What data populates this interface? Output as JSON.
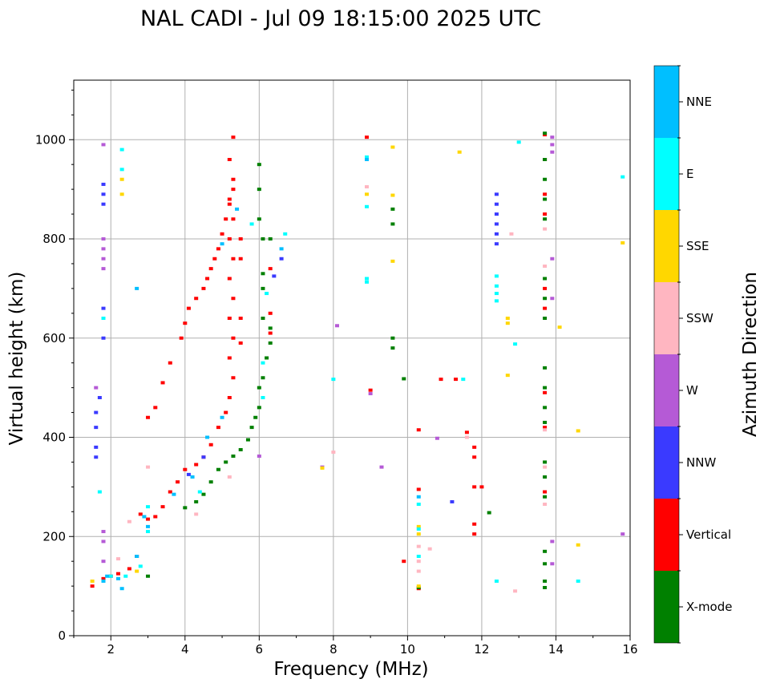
{
  "chart_data": {
    "type": "scatter",
    "title": "NAL CADI - Jul 09 18:15:00 2025 UTC",
    "xlabel": "Frequency (MHz)",
    "ylabel": "Virtual height (km)",
    "xlim": [
      1,
      16
    ],
    "ylim": [
      0,
      1120
    ],
    "x_ticks": [
      2,
      4,
      6,
      8,
      10,
      12,
      14,
      16
    ],
    "y_ticks": [
      0,
      200,
      400,
      600,
      800,
      1000
    ],
    "grid": true,
    "colorbar": {
      "label": "Azimuth Direction",
      "categories": [
        "X-mode",
        "Vertical",
        "NNW",
        "W",
        "SSW",
        "SSE",
        "E",
        "NNE"
      ],
      "colors": [
        "#008000",
        "#ff0000",
        "#3a3aff",
        "#b55ad6",
        "#ffb6c1",
        "#ffd700",
        "#00ffff",
        "#00bfff"
      ]
    },
    "series": [
      {
        "name": "Vertical",
        "color": "#ff0000",
        "points": [
          [
            1.5,
            100
          ],
          [
            1.8,
            115
          ],
          [
            2.0,
            120
          ],
          [
            2.2,
            125
          ],
          [
            2.5,
            135
          ],
          [
            2.7,
            160
          ],
          [
            2.8,
            245
          ],
          [
            3.0,
            235
          ],
          [
            3.2,
            240
          ],
          [
            3.4,
            260
          ],
          [
            3.6,
            290
          ],
          [
            3.8,
            310
          ],
          [
            4.0,
            335
          ],
          [
            4.3,
            345
          ],
          [
            4.5,
            360
          ],
          [
            4.7,
            385
          ],
          [
            4.9,
            420
          ],
          [
            5.1,
            450
          ],
          [
            5.2,
            480
          ],
          [
            5.3,
            520
          ],
          [
            5.2,
            560
          ],
          [
            5.3,
            600
          ],
          [
            5.2,
            640
          ],
          [
            5.3,
            680
          ],
          [
            5.2,
            720
          ],
          [
            5.3,
            760
          ],
          [
            5.2,
            800
          ],
          [
            5.3,
            840
          ],
          [
            5.2,
            880
          ],
          [
            5.3,
            920
          ],
          [
            5.2,
            960
          ],
          [
            5.3,
            1005
          ],
          [
            3.0,
            440
          ],
          [
            3.2,
            460
          ],
          [
            3.4,
            510
          ],
          [
            3.6,
            550
          ],
          [
            3.9,
            600
          ],
          [
            4.0,
            630
          ],
          [
            4.1,
            660
          ],
          [
            4.3,
            680
          ],
          [
            4.5,
            700
          ],
          [
            4.6,
            720
          ],
          [
            4.7,
            740
          ],
          [
            4.8,
            760
          ],
          [
            4.9,
            780
          ],
          [
            5.0,
            810
          ],
          [
            5.1,
            840
          ],
          [
            5.2,
            870
          ],
          [
            5.3,
            900
          ],
          [
            5.5,
            590
          ],
          [
            5.5,
            640
          ],
          [
            5.5,
            760
          ],
          [
            5.5,
            800
          ],
          [
            6.3,
            610
          ],
          [
            6.3,
            650
          ],
          [
            6.3,
            740
          ],
          [
            8.9,
            1005
          ],
          [
            9.0,
            495
          ],
          [
            10.3,
            415
          ],
          [
            10.9,
            517
          ],
          [
            11.3,
            517
          ],
          [
            11.6,
            410
          ],
          [
            11.8,
            380
          ],
          [
            11.8,
            360
          ],
          [
            11.8,
            300
          ],
          [
            11.8,
            225
          ],
          [
            11.8,
            205
          ],
          [
            12.0,
            300
          ],
          [
            10.3,
            95
          ],
          [
            10.3,
            295
          ],
          [
            9.9,
            150
          ],
          [
            13.7,
            1010
          ],
          [
            13.7,
            960
          ],
          [
            13.7,
            890
          ],
          [
            13.7,
            850
          ],
          [
            13.7,
            700
          ],
          [
            13.7,
            660
          ],
          [
            13.7,
            490
          ],
          [
            13.7,
            420
          ],
          [
            13.7,
            290
          ]
        ]
      },
      {
        "name": "X-mode",
        "color": "#008000",
        "points": [
          [
            3.0,
            120
          ],
          [
            4.0,
            258
          ],
          [
            4.3,
            270
          ],
          [
            4.5,
            285
          ],
          [
            4.7,
            310
          ],
          [
            4.9,
            335
          ],
          [
            5.1,
            350
          ],
          [
            5.3,
            362
          ],
          [
            5.5,
            375
          ],
          [
            5.7,
            395
          ],
          [
            5.8,
            420
          ],
          [
            5.9,
            440
          ],
          [
            6.0,
            460
          ],
          [
            6.0,
            500
          ],
          [
            6.1,
            520
          ],
          [
            6.2,
            560
          ],
          [
            6.3,
            590
          ],
          [
            6.3,
            620
          ],
          [
            6.1,
            640
          ],
          [
            6.1,
            700
          ],
          [
            6.1,
            730
          ],
          [
            6.1,
            800
          ],
          [
            6.3,
            800
          ],
          [
            6.0,
            840
          ],
          [
            6.0,
            900
          ],
          [
            6.0,
            950
          ],
          [
            9.6,
            580
          ],
          [
            9.6,
            600
          ],
          [
            9.6,
            830
          ],
          [
            9.6,
            860
          ],
          [
            9.9,
            518
          ],
          [
            10.3,
            97
          ],
          [
            12.2,
            248
          ],
          [
            13.7,
            1013
          ],
          [
            13.7,
            960
          ],
          [
            13.7,
            920
          ],
          [
            13.7,
            880
          ],
          [
            13.7,
            840
          ],
          [
            13.7,
            720
          ],
          [
            13.7,
            680
          ],
          [
            13.7,
            640
          ],
          [
            13.7,
            540
          ],
          [
            13.7,
            500
          ],
          [
            13.7,
            460
          ],
          [
            13.7,
            430
          ],
          [
            13.7,
            350
          ],
          [
            13.7,
            320
          ],
          [
            13.7,
            280
          ],
          [
            13.7,
            170
          ],
          [
            13.7,
            145
          ],
          [
            13.7,
            110
          ],
          [
            13.7,
            97
          ]
        ]
      },
      {
        "name": "NNW",
        "color": "#3a3aff",
        "points": [
          [
            1.6,
            360
          ],
          [
            1.6,
            380
          ],
          [
            1.6,
            420
          ],
          [
            1.6,
            450
          ],
          [
            1.7,
            480
          ],
          [
            1.8,
            600
          ],
          [
            1.8,
            660
          ],
          [
            1.8,
            870
          ],
          [
            1.8,
            890
          ],
          [
            1.8,
            910
          ],
          [
            4.1,
            325
          ],
          [
            4.5,
            360
          ],
          [
            6.4,
            725
          ],
          [
            6.6,
            760
          ],
          [
            11.2,
            270
          ],
          [
            12.4,
            790
          ],
          [
            12.4,
            810
          ],
          [
            12.4,
            830
          ],
          [
            12.4,
            850
          ],
          [
            12.4,
            870
          ],
          [
            12.4,
            890
          ]
        ]
      },
      {
        "name": "W",
        "color": "#b55ad6",
        "points": [
          [
            1.6,
            500
          ],
          [
            1.8,
            150
          ],
          [
            1.8,
            190
          ],
          [
            1.8,
            210
          ],
          [
            1.8,
            740
          ],
          [
            1.8,
            760
          ],
          [
            1.8,
            780
          ],
          [
            1.8,
            800
          ],
          [
            1.8,
            990
          ],
          [
            6.0,
            362
          ],
          [
            7.7,
            340
          ],
          [
            8.1,
            625
          ],
          [
            9.0,
            488
          ],
          [
            9.3,
            340
          ],
          [
            10.8,
            398
          ],
          [
            13.9,
            1005
          ],
          [
            13.9,
            990
          ],
          [
            13.9,
            975
          ],
          [
            13.9,
            760
          ],
          [
            13.9,
            680
          ],
          [
            13.9,
            145
          ],
          [
            13.9,
            190
          ],
          [
            15.8,
            205
          ]
        ]
      },
      {
        "name": "SSW",
        "color": "#ffb6c1",
        "points": [
          [
            2.2,
            155
          ],
          [
            2.5,
            230
          ],
          [
            3.0,
            340
          ],
          [
            4.3,
            245
          ],
          [
            5.2,
            320
          ],
          [
            8.0,
            370
          ],
          [
            8.9,
            905
          ],
          [
            10.3,
            180
          ],
          [
            10.3,
            150
          ],
          [
            10.3,
            130
          ],
          [
            10.6,
            175
          ],
          [
            11.6,
            400
          ],
          [
            12.8,
            810
          ],
          [
            12.9,
            90
          ],
          [
            13.7,
            820
          ],
          [
            13.7,
            745
          ],
          [
            13.7,
            415
          ],
          [
            13.7,
            340
          ],
          [
            13.7,
            265
          ]
        ]
      },
      {
        "name": "SSE",
        "color": "#ffd700",
        "points": [
          [
            1.5,
            110
          ],
          [
            2.3,
            890
          ],
          [
            2.3,
            920
          ],
          [
            2.7,
            130
          ],
          [
            7.7,
            338
          ],
          [
            8.9,
            890
          ],
          [
            9.6,
            755
          ],
          [
            9.6,
            888
          ],
          [
            9.6,
            985
          ],
          [
            10.3,
            220
          ],
          [
            10.3,
            205
          ],
          [
            10.3,
            100
          ],
          [
            11.4,
            975
          ],
          [
            12.7,
            640
          ],
          [
            12.7,
            630
          ],
          [
            12.7,
            525
          ],
          [
            14.1,
            622
          ],
          [
            14.6,
            413
          ],
          [
            14.6,
            183
          ],
          [
            15.8,
            792
          ]
        ]
      },
      {
        "name": "E",
        "color": "#00ffff",
        "points": [
          [
            1.7,
            290
          ],
          [
            1.8,
            640
          ],
          [
            2.0,
            120
          ],
          [
            2.3,
            980
          ],
          [
            2.3,
            940
          ],
          [
            2.4,
            120
          ],
          [
            2.8,
            140
          ],
          [
            3.0,
            210
          ],
          [
            3.0,
            260
          ],
          [
            4.4,
            290
          ],
          [
            5.8,
            830
          ],
          [
            6.1,
            480
          ],
          [
            6.1,
            550
          ],
          [
            6.2,
            690
          ],
          [
            6.7,
            810
          ],
          [
            8.0,
            517
          ],
          [
            8.9,
            720
          ],
          [
            8.9,
            713
          ],
          [
            8.9,
            865
          ],
          [
            8.9,
            965
          ],
          [
            10.3,
            265
          ],
          [
            10.3,
            215
          ],
          [
            10.3,
            160
          ],
          [
            11.5,
            517
          ],
          [
            12.4,
            725
          ],
          [
            12.4,
            705
          ],
          [
            12.4,
            690
          ],
          [
            12.4,
            675
          ],
          [
            12.4,
            110
          ],
          [
            12.9,
            588
          ],
          [
            13.0,
            995
          ],
          [
            14.6,
            110
          ],
          [
            15.8,
            925
          ]
        ]
      },
      {
        "name": "NNE",
        "color": "#00bfff",
        "points": [
          [
            1.8,
            110
          ],
          [
            1.9,
            120
          ],
          [
            2.2,
            115
          ],
          [
            2.3,
            95
          ],
          [
            2.7,
            160
          ],
          [
            2.7,
            700
          ],
          [
            2.9,
            240
          ],
          [
            3.0,
            220
          ],
          [
            3.7,
            285
          ],
          [
            4.2,
            320
          ],
          [
            4.6,
            400
          ],
          [
            5.0,
            440
          ],
          [
            5.0,
            790
          ],
          [
            5.4,
            860
          ],
          [
            6.6,
            780
          ],
          [
            8.9,
            960
          ],
          [
            10.3,
            280
          ]
        ]
      }
    ]
  }
}
